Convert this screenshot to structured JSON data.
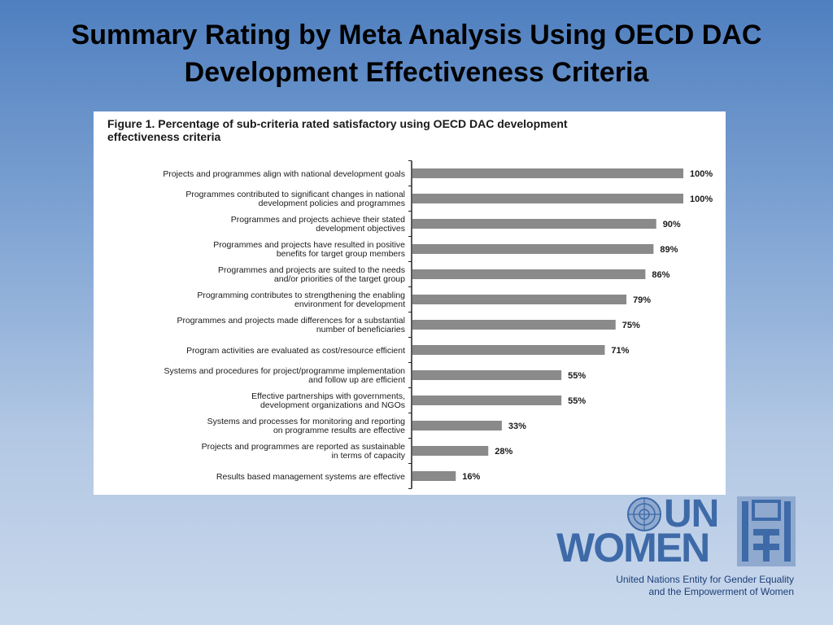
{
  "slide": {
    "title_line1": "Summary Rating by Meta Analysis Using OECD DAC",
    "title_line2": "Development Effectiveness Criteria"
  },
  "figure": {
    "caption_line1": "Figure 1. Percentage of sub-criteria rated satisfactory using OECD DAC development",
    "caption_line2": "effectiveness criteria"
  },
  "chart_data": {
    "type": "bar",
    "orientation": "horizontal",
    "title": "Figure 1. Percentage of sub-criteria rated satisfactory using OECD DAC development effectiveness criteria",
    "categories": [
      [
        "Projects and programmes align with national development goals"
      ],
      [
        "Programmes contributed to significant changes in national",
        "development policies and programmes"
      ],
      [
        "Programmes and projects achieve their stated",
        "development objectives"
      ],
      [
        "Programmes and projects have resulted in positive",
        "benefits for target group members"
      ],
      [
        "Programmes and projects are suited to the needs",
        "and/or priorities of the target group"
      ],
      [
        "Programming contributes to strengthening the enabling",
        "environment for development"
      ],
      [
        "Programmes and projects made differences for a substantial",
        "number of beneficiaries"
      ],
      [
        "Program activities are evaluated as cost/resource efficient"
      ],
      [
        "Systems and procedures for project/programme implementation",
        "and follow up are efficient"
      ],
      [
        "Effective partnerships with governments,",
        "development organizations and NGOs"
      ],
      [
        "Systems and processes for monitoring and reporting",
        "on programme results are effective"
      ],
      [
        "Projects and programmes are reported as sustainable",
        "in terms of capacity"
      ],
      [
        "Results based management systems are effective"
      ]
    ],
    "values": [
      100,
      100,
      90,
      89,
      86,
      79,
      75,
      71,
      55,
      55,
      33,
      28,
      16
    ],
    "value_labels": [
      "100%",
      "100%",
      "90%",
      "89%",
      "86%",
      "79%",
      "75%",
      "71%",
      "55%",
      "55%",
      "33%",
      "28%",
      "16%"
    ],
    "xlim": [
      0,
      100
    ],
    "bar_color": "#8a8a8a",
    "grid": false,
    "legend": "none"
  },
  "logo": {
    "un": "UN",
    "women": "WOMEN",
    "tagline_line1": "United Nations Entity for Gender Equality",
    "tagline_line2": "and the Empowerment of Women",
    "color": "#3e6aa8"
  }
}
